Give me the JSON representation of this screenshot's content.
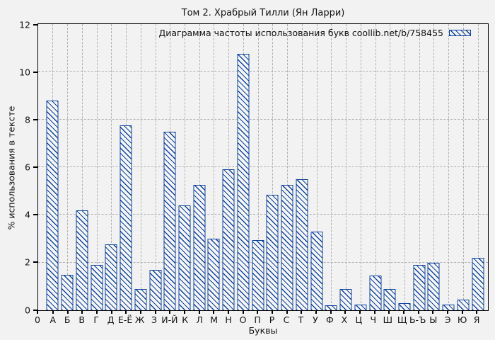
{
  "figure": {
    "title": "Том 2. Храбрый Тилли (Ян Ларри)",
    "x_axis_label": "Буквы",
    "y_axis_label": "% использования в тексте",
    "origin_tick_label": "0",
    "legend_label": "Диаграмма частоты использования букв coollib.net/b/758455"
  },
  "colors": {
    "bar": "#0d43a3",
    "grid": "#b0b0b0",
    "background": "#f2f2f2",
    "axis": "#000000"
  },
  "chart_data": {
    "type": "bar",
    "title": "Том 2. Храбрый Тилли (Ян Ларри)",
    "legend": [
      "Диаграмма частоты использования букв coollib.net/b/758455"
    ],
    "legend_position": "top-right-inside",
    "xlabel": "Буквы",
    "ylabel": "% использования в тексте",
    "ylim": [
      0,
      12
    ],
    "yticks": [
      0,
      2,
      4,
      6,
      8,
      10,
      12
    ],
    "grid": true,
    "bar_style": "blue diagonal hatch, hollow fill",
    "categories": [
      "А",
      "Б",
      "В",
      "Г",
      "Д",
      "Е-Ё",
      "Ж",
      "З",
      "И-Й",
      "К",
      "Л",
      "М",
      "Н",
      "О",
      "П",
      "Р",
      "С",
      "Т",
      "У",
      "Ф",
      "Х",
      "Ц",
      "Ч",
      "Ш",
      "Щ",
      "Ь-Ъ",
      "Ы",
      "Э",
      "Ю",
      "Я"
    ],
    "values": [
      8.8,
      1.5,
      4.2,
      1.9,
      2.75,
      7.75,
      0.9,
      1.7,
      7.5,
      4.4,
      5.25,
      3.0,
      5.9,
      10.75,
      2.95,
      4.85,
      5.25,
      5.5,
      3.3,
      0.2,
      0.9,
      0.25,
      1.45,
      0.9,
      0.3,
      1.9,
      2.0,
      0.25,
      0.45,
      2.2
    ]
  }
}
